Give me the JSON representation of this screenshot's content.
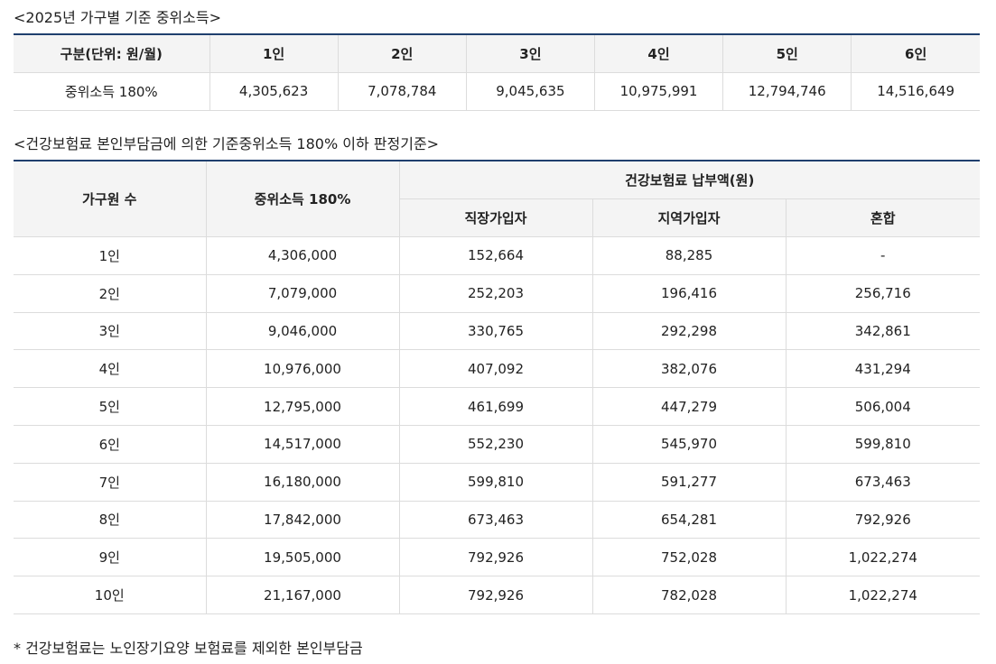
{
  "table1": {
    "title": "<2025년 가구별 기준 중위소득>",
    "header": [
      "구분(단위: 원/월)",
      "1인",
      "2인",
      "3인",
      "4인",
      "5인",
      "6인"
    ],
    "rows": [
      [
        "중위소득 180%",
        "4,305,623",
        "7,078,784",
        "9,045,635",
        "10,975,991",
        "12,794,746",
        "14,516,649"
      ]
    ]
  },
  "table2": {
    "title": "<건강보험료 본인부담금에 의한 기준중위소득 180% 이하 판정기준>",
    "header_top": [
      "가구원 수",
      "중위소득 180%",
      "건강보험료 납부액(원)"
    ],
    "header_sub": [
      "직장가입자",
      "지역가입자",
      "혼합"
    ],
    "rows": [
      [
        "1인",
        "4,306,000",
        "152,664",
        "88,285",
        "-"
      ],
      [
        "2인",
        "7,079,000",
        "252,203",
        "196,416",
        "256,716"
      ],
      [
        "3인",
        "9,046,000",
        "330,765",
        "292,298",
        "342,861"
      ],
      [
        "4인",
        "10,976,000",
        "407,092",
        "382,076",
        "431,294"
      ],
      [
        "5인",
        "12,795,000",
        "461,699",
        "447,279",
        "506,004"
      ],
      [
        "6인",
        "14,517,000",
        "552,230",
        "545,970",
        "599,810"
      ],
      [
        "7인",
        "16,180,000",
        "599,810",
        "591,277",
        "673,463"
      ],
      [
        "8인",
        "17,842,000",
        "673,463",
        "654,281",
        "792,926"
      ],
      [
        "9인",
        "19,505,000",
        "792,926",
        "752,028",
        "1,022,274"
      ],
      [
        "10인",
        "21,167,000",
        "792,926",
        "782,028",
        "1,022,274"
      ]
    ]
  },
  "footnote": "* 건강보험료는 노인장기요양 보험료를 제외한 본인부담금"
}
